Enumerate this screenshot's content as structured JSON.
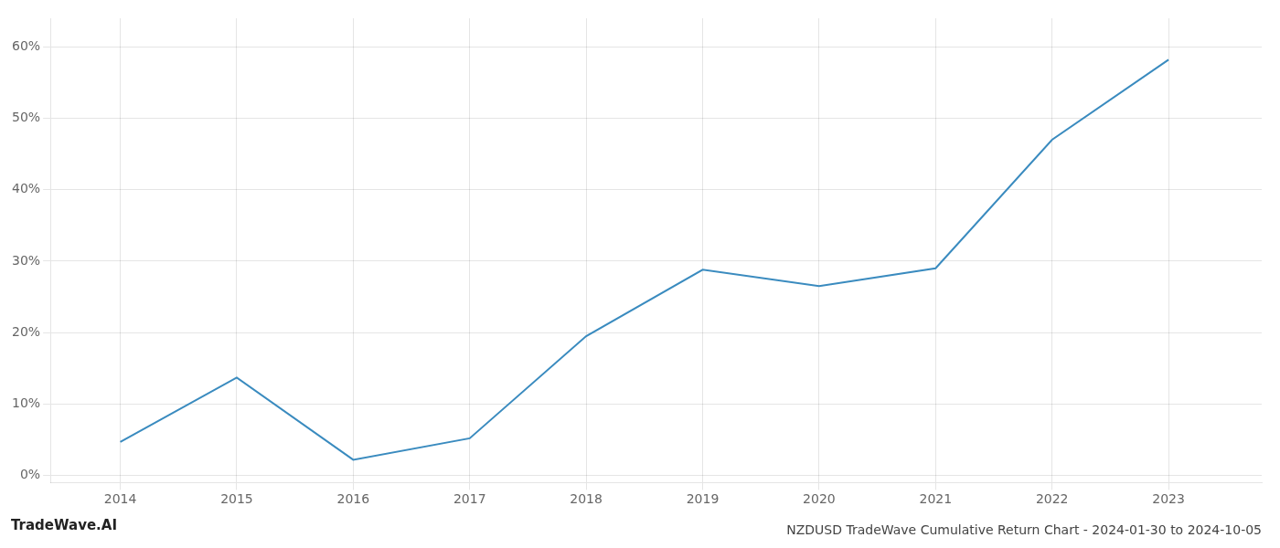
{
  "chart_data": {
    "type": "line",
    "title": "NZDUSD TradeWave Cumulative Return Chart - 2024-01-30 to 2024-10-05",
    "annotations": [
      "TradeWave.AI"
    ],
    "x": [
      2014,
      2015,
      2016,
      2017,
      2018,
      2019,
      2020,
      2021,
      2022,
      2023
    ],
    "values": [
      0.047,
      0.137,
      0.022,
      0.052,
      0.195,
      0.288,
      0.265,
      0.29,
      0.47,
      0.582
    ],
    "color": "#3a8bbf",
    "xlim": [
      2013.4,
      2023.8
    ],
    "xticks": [
      2014,
      2015,
      2016,
      2017,
      2018,
      2019,
      2020,
      2021,
      2022,
      2023
    ],
    "ylim": [
      -0.01,
      0.64
    ],
    "yticks": [
      {
        "value": 0.0,
        "label": "0%"
      },
      {
        "value": 0.1,
        "label": "10%"
      },
      {
        "value": 0.2,
        "label": "20%"
      },
      {
        "value": 0.3,
        "label": "30%"
      },
      {
        "value": 0.4,
        "label": "40%"
      },
      {
        "value": 0.5,
        "label": "50%"
      },
      {
        "value": 0.6,
        "label": "60%"
      }
    ],
    "grid": true
  }
}
